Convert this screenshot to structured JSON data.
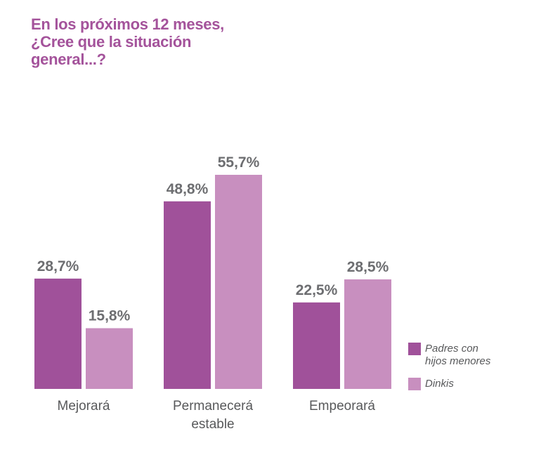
{
  "title_lines": [
    "En los próximos 12 meses,",
    "¿Cree que la situación",
    "general...?"
  ],
  "colors": {
    "title": "#a4539b",
    "padres": "#a0519a",
    "dinkis": "#c88fbf"
  },
  "chart_data": {
    "type": "bar",
    "title": "En los próximos 12 meses, ¿Cree que la situación general...?",
    "categories": [
      [
        "Mejorará"
      ],
      [
        "Permanecerá",
        "estable"
      ],
      [
        "Empeorará"
      ]
    ],
    "series": [
      {
        "name": [
          "Padres con",
          "hijos menores"
        ],
        "values": [
          28.7,
          48.8,
          22.5
        ],
        "labels": [
          "28,7%",
          "48,8%",
          "22,5%"
        ],
        "color": "#a0519a"
      },
      {
        "name": [
          "Dinkis"
        ],
        "values": [
          15.8,
          55.7,
          28.5
        ],
        "labels": [
          "15,8%",
          "55,7%",
          "28,5%"
        ],
        "color": "#c88fbf"
      }
    ],
    "ylim": [
      0,
      55.7
    ],
    "legend": "right",
    "grid": false
  }
}
